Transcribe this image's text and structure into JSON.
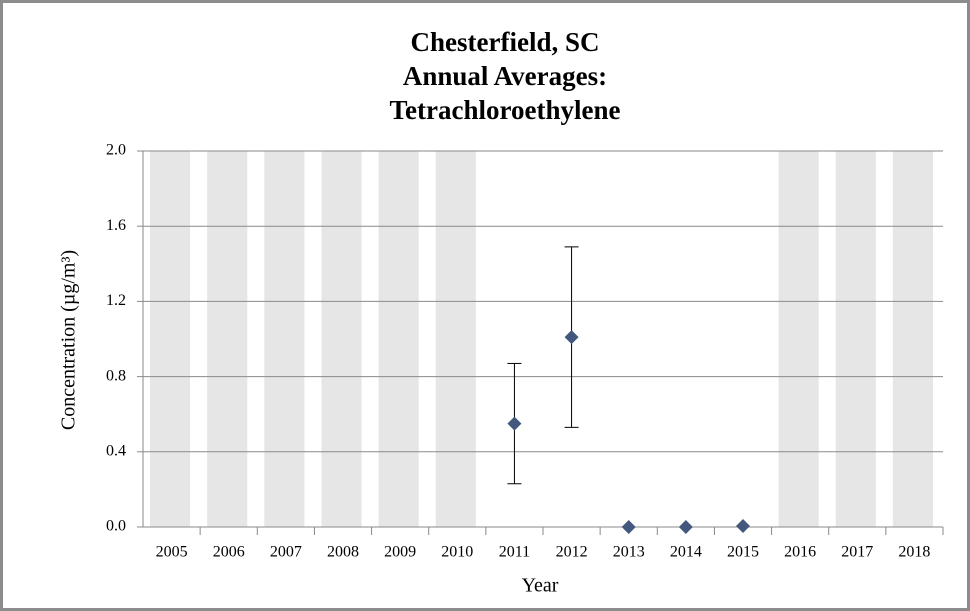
{
  "chart_data": {
    "type": "scatter",
    "title": [
      "Chesterfield, SC",
      "Annual Averages:",
      "Tetrachloroethylene"
    ],
    "x_label": "Year",
    "y_label": "Concentration (µg/m³)",
    "categories": [
      "2005",
      "2006",
      "2007",
      "2008",
      "2009",
      "2010",
      "2011",
      "2012",
      "2013",
      "2014",
      "2015",
      "2016",
      "2017",
      "2018"
    ],
    "shaded": [
      true,
      true,
      true,
      true,
      true,
      true,
      false,
      false,
      false,
      false,
      false,
      true,
      true,
      true
    ],
    "shade_color": "#e6e6e6",
    "series": [
      {
        "color": "#44587e",
        "values": [
          null,
          null,
          null,
          null,
          null,
          null,
          0.55,
          1.01,
          0,
          0,
          0.005,
          null,
          null,
          null
        ],
        "errors": [
          null,
          null,
          null,
          null,
          null,
          null,
          0.32,
          0.48,
          null,
          null,
          null,
          null,
          null,
          null
        ]
      }
    ],
    "ylim": [
      0,
      2
    ],
    "yticks": [
      {
        "value": 0,
        "label": "0.0"
      },
      0.4,
      0.8,
      1.2,
      1.6,
      {
        "value": 2,
        "label": "2.0"
      }
    ],
    "grid": true
  }
}
